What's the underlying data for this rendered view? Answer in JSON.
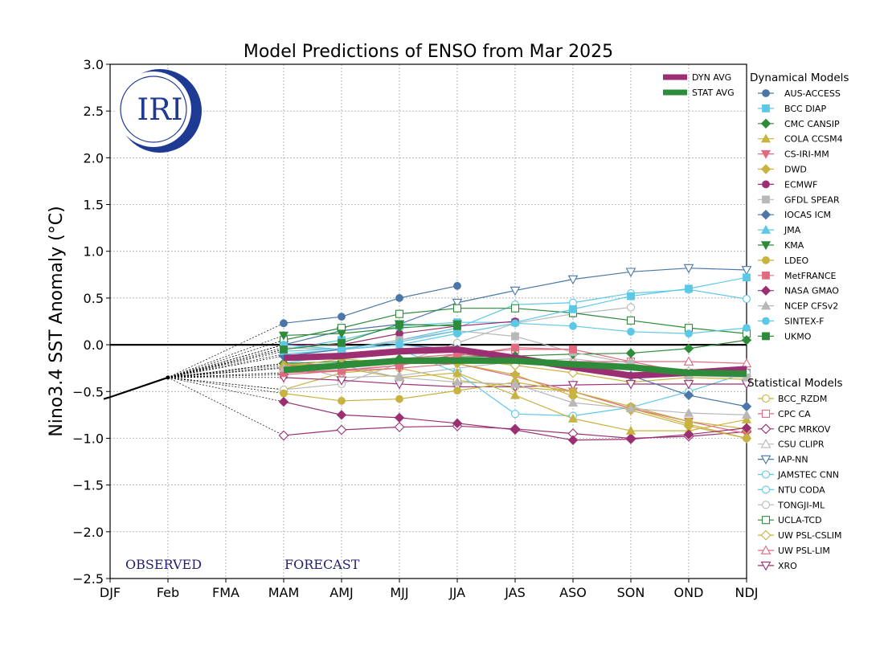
{
  "chart_data": {
    "type": "line",
    "title": "Model Predictions of ENSO from Mar 2025",
    "ylabel": "Nino3.4 SST Anomaly (°C)",
    "xlabel": "",
    "categories": [
      "DJF",
      "Feb",
      "FMA",
      "MAM",
      "AMJ",
      "MJJ",
      "JJA",
      "JAS",
      "ASO",
      "SON",
      "OND",
      "NDJ"
    ],
    "ylim": [
      -2.5,
      3.0
    ],
    "yticks": [
      -2.5,
      -2.0,
      -1.5,
      -1.0,
      -0.5,
      0.0,
      0.5,
      1.0,
      1.5,
      2.0,
      2.5,
      3.0
    ],
    "grid": true,
    "zero_line": true,
    "logo_text": "IRI",
    "observed_label": "OBSERVED",
    "forecast_label": "FORECAST",
    "observed": [
      {
        "x": "DJF",
        "y": -0.56
      },
      {
        "x": "Feb",
        "y": -0.35
      }
    ],
    "averages": [
      {
        "name": "DYN AVG",
        "color": "#9b2f72",
        "values": [
          -0.14,
          -0.12,
          -0.07,
          -0.05,
          -0.14,
          -0.24,
          -0.33,
          -0.3,
          -0.26
        ]
      },
      {
        "name": "STAT AVG",
        "color": "#2e8b3a",
        "values": [
          -0.27,
          -0.22,
          -0.17,
          -0.17,
          -0.17,
          -0.21,
          -0.24,
          -0.3,
          -0.31
        ]
      }
    ],
    "dynamical_legend_title": "Dynamical Models",
    "dynamical": [
      {
        "name": "AUS-ACCESS",
        "color": "#4a76a8",
        "marker": "circle",
        "filled": true,
        "values": [
          0.23,
          0.3,
          0.5,
          0.63,
          null,
          null,
          null,
          null,
          null
        ]
      },
      {
        "name": "BCC DIAP",
        "color": "#5bc8e6",
        "marker": "square",
        "filled": true,
        "values": [
          -0.05,
          0.05,
          0.2,
          0.24,
          0.24,
          0.38,
          0.52,
          0.6,
          0.72
        ]
      },
      {
        "name": "CMC CANSIP",
        "color": "#2e8b3a",
        "marker": "diamond",
        "filled": true,
        "values": [
          -0.2,
          -0.18,
          -0.15,
          -0.13,
          -0.12,
          -0.1,
          -0.09,
          -0.04,
          0.05
        ]
      },
      {
        "name": "COLA CCSM4",
        "color": "#c8b240",
        "marker": "triangle-up",
        "filled": true,
        "values": [
          -0.2,
          -0.25,
          -0.35,
          -0.3,
          -0.54,
          -0.79,
          -0.92,
          -0.92,
          -0.8
        ]
      },
      {
        "name": "CS-IRI-MM",
        "color": "#e06a80",
        "marker": "triangle-down",
        "filled": true,
        "values": [
          -0.3,
          -0.28,
          -0.25,
          -0.2,
          -0.34,
          -0.5,
          -0.68,
          -0.82,
          -0.95
        ]
      },
      {
        "name": "DWD",
        "color": "#c8b240",
        "marker": "diamond",
        "filled": true,
        "values": [
          -0.24,
          -0.15,
          -0.2,
          -0.2,
          -0.32,
          -0.55,
          -0.7,
          -0.87,
          -1.0
        ]
      },
      {
        "name": "ECMWF",
        "color": "#9b2f72",
        "marker": "circle",
        "filled": true,
        "values": [
          0.0,
          0.0,
          0.12,
          0.2,
          0.25,
          null,
          null,
          null,
          null
        ]
      },
      {
        "name": "GFDL SPEAR",
        "color": "#b8b8b8",
        "marker": "square",
        "filled": true,
        "values": [
          -0.03,
          -0.05,
          0.05,
          0.15,
          0.09,
          -0.08,
          -0.2,
          -0.33,
          -0.35
        ]
      },
      {
        "name": "IOCAS ICM",
        "color": "#4a76a8",
        "marker": "diamond",
        "filled": true,
        "values": [
          -0.12,
          -0.05,
          0.0,
          -0.05,
          -0.15,
          -0.22,
          -0.33,
          -0.54,
          -0.66
        ]
      },
      {
        "name": "JMA",
        "color": "#5bc8e6",
        "marker": "triangle-up",
        "filled": true,
        "values": [
          -0.07,
          -0.04,
          0.03,
          0.15,
          null,
          null,
          null,
          null,
          null
        ]
      },
      {
        "name": "KMA",
        "color": "#2e8b3a",
        "marker": "triangle-down",
        "filled": true,
        "values": [
          0.1,
          0.12,
          0.18,
          0.22,
          null,
          null,
          null,
          null,
          null
        ]
      },
      {
        "name": "LDEO",
        "color": "#c8b240",
        "marker": "circle",
        "filled": true,
        "values": [
          -0.52,
          -0.6,
          -0.58,
          -0.49,
          -0.4,
          -0.5,
          -0.66,
          -0.82,
          -0.9
        ]
      },
      {
        "name": "MetFRANCE",
        "color": "#e06a80",
        "marker": "square",
        "filled": true,
        "values": [
          -0.3,
          -0.27,
          -0.22,
          -0.12,
          -0.03,
          -0.05,
          null,
          null,
          null
        ]
      },
      {
        "name": "NASA GMAO",
        "color": "#9b2f72",
        "marker": "diamond",
        "filled": true,
        "values": [
          -0.61,
          -0.75,
          -0.78,
          -0.84,
          -0.91,
          -1.02,
          -1.01,
          -0.96,
          -0.89
        ]
      },
      {
        "name": "NCEP CFSv2",
        "color": "#b8b8b8",
        "marker": "triangle-up",
        "filled": true,
        "values": [
          -0.25,
          -0.22,
          -0.35,
          -0.4,
          -0.42,
          -0.62,
          -0.68,
          -0.73,
          -0.75
        ]
      },
      {
        "name": "SINTEX-F",
        "color": "#5bc8e6",
        "marker": "circle",
        "filled": true,
        "values": [
          0.0,
          -0.05,
          0.0,
          0.12,
          0.23,
          0.2,
          0.14,
          0.12,
          0.18
        ]
      },
      {
        "name": "UKMO",
        "color": "#2e8b3a",
        "marker": "square",
        "filled": true,
        "values": [
          -0.05,
          0.02,
          0.22,
          0.2,
          null,
          null,
          null,
          null,
          null
        ]
      }
    ],
    "statistical_legend_title": "Statistical Models",
    "statistical": [
      {
        "name": "BCC_RZDM",
        "color": "#c8b240",
        "marker": "circle",
        "filled": false,
        "values": [
          -0.48,
          -0.3,
          -0.25,
          -0.38,
          -0.45,
          -0.5,
          -0.68,
          -0.85,
          -1.0
        ]
      },
      {
        "name": "CPC CA",
        "color": "#e06a80",
        "marker": "square",
        "filled": false,
        "values": [
          -0.32,
          -0.28,
          -0.22,
          -0.1,
          -0.05,
          -0.05,
          -0.18,
          -0.3,
          -0.3
        ]
      },
      {
        "name": "CPC MRKOV",
        "color": "#9b2f72",
        "marker": "diamond",
        "filled": false,
        "values": [
          -0.97,
          -0.91,
          -0.88,
          -0.87,
          -0.9,
          -0.95,
          -1.0,
          -0.98,
          -0.93
        ]
      },
      {
        "name": "CSU CLIPR",
        "color": "#b8b8b8",
        "marker": "triangle-up",
        "filled": false,
        "values": [
          -0.2,
          -0.35,
          -0.33,
          -0.25,
          -0.18,
          -0.15,
          -0.22,
          -0.28,
          -0.3
        ]
      },
      {
        "name": "IAP-NN",
        "color": "#4a76a8",
        "marker": "triangle-down",
        "filled": false,
        "values": [
          0.0,
          0.15,
          0.22,
          0.45,
          0.58,
          0.7,
          0.78,
          0.82,
          0.8
        ]
      },
      {
        "name": "JAMSTEC CNN",
        "color": "#5bc8e6",
        "marker": "circle",
        "filled": false,
        "values": [
          -0.2,
          -0.1,
          -0.05,
          -0.3,
          -0.74,
          -0.76,
          -0.67,
          -0.5,
          -0.3
        ]
      },
      {
        "name": "NTU CODA",
        "color": "#5bc8e6",
        "marker": "circle",
        "filled": false,
        "values": [
          -0.1,
          -0.05,
          0.05,
          0.18,
          0.43,
          0.45,
          0.55,
          0.59,
          0.49
        ]
      },
      {
        "name": "TONGJI-ML",
        "color": "#b8b8b8",
        "marker": "circle",
        "filled": false,
        "values": [
          -0.48,
          -0.42,
          -0.2,
          0.02,
          0.23,
          0.33,
          0.4,
          null,
          null
        ]
      },
      {
        "name": "UCLA-TCD",
        "color": "#2e8b3a",
        "marker": "square",
        "filled": false,
        "values": [
          0.05,
          0.18,
          0.33,
          0.39,
          0.39,
          0.34,
          0.26,
          0.18,
          0.12
        ]
      },
      {
        "name": "UW PSL-CSLIM",
        "color": "#c8b240",
        "marker": "diamond",
        "filled": false,
        "values": [
          -0.2,
          -0.22,
          -0.2,
          -0.15,
          -0.22,
          -0.3,
          -0.4,
          -0.35,
          -0.37
        ]
      },
      {
        "name": "UW PSL-LIM",
        "color": "#e06a80",
        "marker": "triangle-up",
        "filled": false,
        "values": [
          -0.22,
          -0.2,
          -0.15,
          -0.1,
          -0.15,
          -0.18,
          -0.18,
          -0.18,
          -0.2
        ]
      },
      {
        "name": "XRO",
        "color": "#9b2f72",
        "marker": "triangle-down",
        "filled": false,
        "values": [
          -0.35,
          -0.38,
          -0.42,
          -0.45,
          -0.45,
          -0.43,
          -0.42,
          -0.42,
          -0.42
        ]
      }
    ]
  }
}
